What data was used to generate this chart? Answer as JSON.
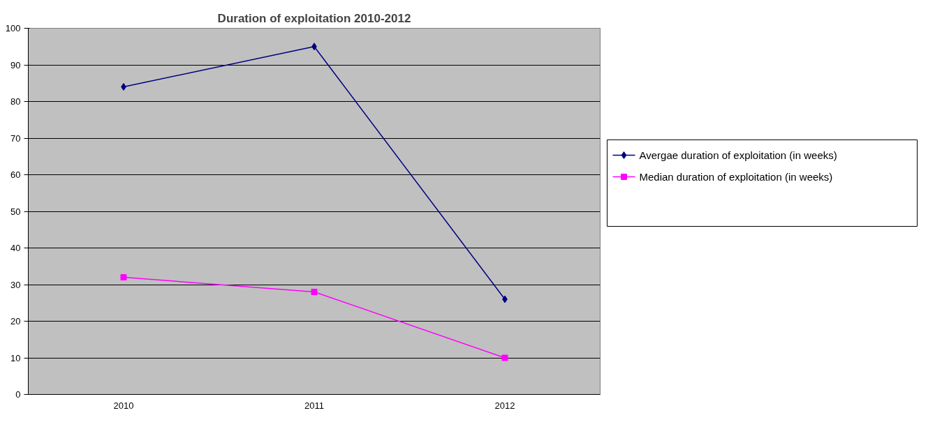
{
  "chart_data": {
    "type": "line",
    "title": "Duration of exploitation 2010-2012",
    "categories": [
      "2010",
      "2011",
      "2012"
    ],
    "series": [
      {
        "name": "Avergae duration of exploitation (in weeks)",
        "color": "#000080",
        "values": [
          84,
          95,
          26
        ],
        "marker": "diamond"
      },
      {
        "name": "Median duration of exploitation (in weeks)",
        "color": "#ff00ff",
        "values": [
          32,
          28,
          10
        ],
        "marker": "square"
      }
    ],
    "ylim": [
      0,
      100
    ],
    "yticks": [
      0,
      10,
      20,
      30,
      40,
      50,
      60,
      70,
      80,
      90,
      100
    ],
    "grid": "y",
    "legend": "right",
    "line_style": "solid"
  }
}
